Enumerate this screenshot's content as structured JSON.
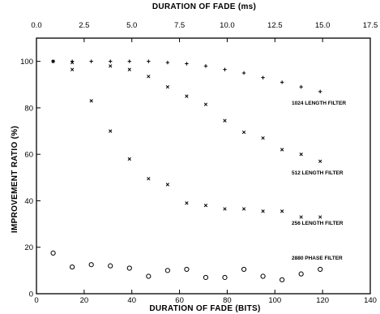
{
  "chart_data": {
    "type": "scatter",
    "xlabel": "DURATION OF FADE (BITS)",
    "x2label": "DURATION OF FADE (ms)",
    "ylabel": "IMPROVEMENT RATIO (%)",
    "xlim": [
      0,
      140
    ],
    "x2lim": [
      0,
      17.5
    ],
    "ylim": [
      0,
      110
    ],
    "x_ticks": [
      0,
      20,
      40,
      60,
      80,
      100,
      120,
      140
    ],
    "x2_ticks": [
      "0.0",
      "2.5",
      "5.0",
      "7.5",
      "10.0",
      "12.5",
      "15.0",
      "17.5"
    ],
    "y_ticks": [
      0,
      20,
      40,
      60,
      80,
      100
    ],
    "grid": false,
    "series": [
      {
        "name": "1024 LENGTH FILTER",
        "marker": "plus",
        "x": [
          7,
          15,
          23,
          31,
          39,
          47,
          55,
          63,
          71,
          79,
          87,
          95,
          103,
          111,
          119
        ],
        "y": [
          100,
          100,
          100,
          100,
          100,
          100,
          99.5,
          99,
          98,
          96.5,
          95,
          93,
          91,
          89,
          87
        ]
      },
      {
        "name": "512 LENGTH FILTER",
        "marker": "x",
        "x": [
          7,
          15,
          31,
          39,
          47,
          55,
          63,
          71,
          79,
          87,
          95,
          103,
          111,
          119
        ],
        "y": [
          100,
          99.5,
          98,
          96.5,
          93.5,
          89,
          85,
          81.5,
          74.5,
          69.5,
          67,
          62,
          60,
          57
        ]
      },
      {
        "name": "256 LENGTH FILTER",
        "marker": "x",
        "x": [
          15,
          23,
          31,
          39,
          47,
          55,
          63,
          71,
          79,
          87,
          95,
          103,
          111,
          119
        ],
        "y": [
          96.5,
          83,
          70,
          58,
          49.5,
          47,
          39,
          38,
          36.5,
          36.5,
          35.5,
          35.5,
          33,
          33
        ]
      },
      {
        "name": "2880 PHASE FILTER",
        "marker": "circle",
        "x": [
          7,
          15,
          23,
          31,
          39,
          47,
          55,
          63,
          71,
          79,
          87,
          95,
          103,
          111,
          119
        ],
        "y": [
          17.5,
          11.5,
          12.5,
          12,
          11,
          7.5,
          10,
          10.5,
          7,
          7,
          10.5,
          7.5,
          6,
          8.5,
          10.5
        ]
      }
    ]
  }
}
